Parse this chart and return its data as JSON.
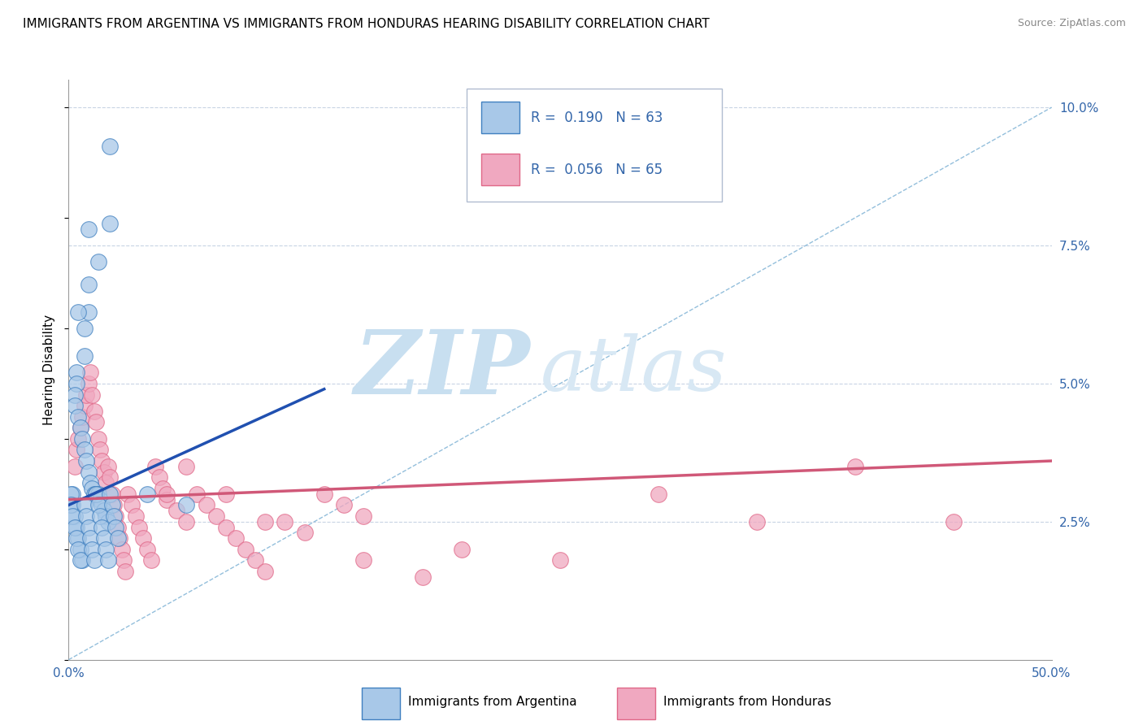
{
  "title": "IMMIGRANTS FROM ARGENTINA VS IMMIGRANTS FROM HONDURAS HEARING DISABILITY CORRELATION CHART",
  "source": "Source: ZipAtlas.com",
  "ylabel": "Hearing Disability",
  "xlim": [
    0,
    0.5
  ],
  "ylim": [
    0.0,
    0.105
  ],
  "yticks_right": [
    0.0,
    0.025,
    0.05,
    0.075,
    0.1
  ],
  "ytick_labels_right": [
    "",
    "2.5%",
    "5.0%",
    "7.5%",
    "10.0%"
  ],
  "legend1_R": "0.190",
  "legend1_N": "63",
  "legend2_R": "0.056",
  "legend2_N": "65",
  "color_argentina": "#a8c8e8",
  "color_honduras": "#f0a8c0",
  "color_argentina_edge": "#4080c0",
  "color_honduras_edge": "#e06888",
  "color_argentina_line": "#2050b0",
  "color_honduras_line": "#d05878",
  "color_diag_line": "#88b8d8",
  "background_color": "#ffffff",
  "grid_color": "#c8d4e4",
  "argentina_x": [
    0.021,
    0.021,
    0.01,
    0.015,
    0.01,
    0.01,
    0.005,
    0.008,
    0.008,
    0.004,
    0.004,
    0.003,
    0.003,
    0.005,
    0.006,
    0.007,
    0.008,
    0.009,
    0.01,
    0.011,
    0.012,
    0.013,
    0.014,
    0.015,
    0.016,
    0.017,
    0.018,
    0.019,
    0.02,
    0.002,
    0.002,
    0.003,
    0.004,
    0.005,
    0.006,
    0.007,
    0.001,
    0.001,
    0.002,
    0.003,
    0.004,
    0.005,
    0.006,
    0.008,
    0.009,
    0.01,
    0.011,
    0.012,
    0.013,
    0.014,
    0.015,
    0.016,
    0.017,
    0.018,
    0.019,
    0.02,
    0.021,
    0.022,
    0.023,
    0.024,
    0.025,
    0.04,
    0.06
  ],
  "argentina_y": [
    0.093,
    0.079,
    0.078,
    0.072,
    0.068,
    0.063,
    0.063,
    0.06,
    0.055,
    0.052,
    0.05,
    0.048,
    0.046,
    0.044,
    0.042,
    0.04,
    0.038,
    0.036,
    0.034,
    0.032,
    0.031,
    0.03,
    0.03,
    0.03,
    0.029,
    0.028,
    0.027,
    0.026,
    0.025,
    0.03,
    0.028,
    0.026,
    0.024,
    0.022,
    0.02,
    0.018,
    0.03,
    0.028,
    0.026,
    0.024,
    0.022,
    0.02,
    0.018,
    0.028,
    0.026,
    0.024,
    0.022,
    0.02,
    0.018,
    0.03,
    0.028,
    0.026,
    0.024,
    0.022,
    0.02,
    0.018,
    0.03,
    0.028,
    0.026,
    0.024,
    0.022,
    0.03,
    0.028
  ],
  "honduras_x": [
    0.003,
    0.004,
    0.005,
    0.006,
    0.007,
    0.008,
    0.009,
    0.01,
    0.011,
    0.012,
    0.013,
    0.014,
    0.015,
    0.016,
    0.017,
    0.018,
    0.019,
    0.02,
    0.021,
    0.022,
    0.023,
    0.024,
    0.025,
    0.026,
    0.027,
    0.028,
    0.029,
    0.03,
    0.032,
    0.034,
    0.036,
    0.038,
    0.04,
    0.042,
    0.044,
    0.046,
    0.048,
    0.05,
    0.055,
    0.06,
    0.065,
    0.07,
    0.075,
    0.08,
    0.085,
    0.09,
    0.095,
    0.1,
    0.11,
    0.12,
    0.13,
    0.14,
    0.15,
    0.2,
    0.25,
    0.3,
    0.35,
    0.4,
    0.45,
    0.05,
    0.06,
    0.08,
    0.1,
    0.15,
    0.18
  ],
  "honduras_y": [
    0.035,
    0.038,
    0.04,
    0.042,
    0.044,
    0.046,
    0.048,
    0.05,
    0.052,
    0.048,
    0.045,
    0.043,
    0.04,
    0.038,
    0.036,
    0.034,
    0.032,
    0.035,
    0.033,
    0.03,
    0.028,
    0.026,
    0.024,
    0.022,
    0.02,
    0.018,
    0.016,
    0.03,
    0.028,
    0.026,
    0.024,
    0.022,
    0.02,
    0.018,
    0.035,
    0.033,
    0.031,
    0.029,
    0.027,
    0.025,
    0.03,
    0.028,
    0.026,
    0.024,
    0.022,
    0.02,
    0.018,
    0.016,
    0.025,
    0.023,
    0.03,
    0.028,
    0.026,
    0.02,
    0.018,
    0.03,
    0.025,
    0.035,
    0.025,
    0.03,
    0.035,
    0.03,
    0.025,
    0.018,
    0.015
  ],
  "arg_line_x0": 0.0,
  "arg_line_y0": 0.028,
  "arg_line_x1": 0.13,
  "arg_line_y1": 0.049,
  "hon_line_x0": 0.0,
  "hon_line_y0": 0.029,
  "hon_line_x1": 0.5,
  "hon_line_y1": 0.036,
  "watermark_zip": "ZIP",
  "watermark_atlas": "atlas",
  "watermark_color_zip": "#c8dff0",
  "watermark_color_atlas": "#d8e8f4"
}
